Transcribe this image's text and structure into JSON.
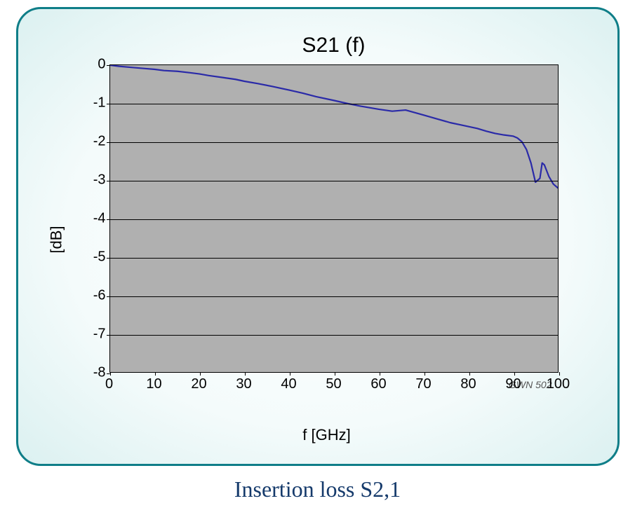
{
  "caption": "Insertion loss S2,1",
  "chart": {
    "type": "line",
    "title": "S21 (f)",
    "xlabel": "f [GHz]",
    "ylabel": "[dB]",
    "watermark": "GWN 502",
    "xlim": [
      0,
      100
    ],
    "ylim": [
      -8,
      0
    ],
    "xtick_step": 10,
    "ytick_step": 1,
    "xticks": [
      0,
      10,
      20,
      30,
      40,
      50,
      60,
      70,
      80,
      90,
      100
    ],
    "yticks": [
      0,
      -1,
      -2,
      -3,
      -4,
      -5,
      -6,
      -7,
      -8
    ],
    "grid_color": "#000000",
    "background_color": "#b0b0b0",
    "panel_border_color": "#0f7e88",
    "panel_fill_color": "#d5edee",
    "title_fontsize": 30,
    "label_fontsize": 22,
    "tick_fontsize": 20,
    "caption_fontsize": 32,
    "caption_color": "#153a6b",
    "line_color": "#2a2aa8",
    "line_width": 2.2,
    "data": {
      "x": [
        0,
        2,
        5,
        8,
        10,
        12,
        15,
        18,
        20,
        22,
        25,
        28,
        30,
        33,
        36,
        40,
        43,
        46,
        50,
        53,
        56,
        60,
        63,
        66,
        70,
        73,
        76,
        78,
        80,
        82,
        84,
        86,
        88,
        90,
        91,
        92,
        93,
        94,
        95,
        96,
        96.5,
        97,
        98,
        99,
        100
      ],
      "y": [
        0.0,
        -0.03,
        -0.06,
        -0.09,
        -0.11,
        -0.14,
        -0.16,
        -0.2,
        -0.23,
        -0.27,
        -0.32,
        -0.37,
        -0.42,
        -0.48,
        -0.55,
        -0.65,
        -0.73,
        -0.82,
        -0.92,
        -1.0,
        -1.07,
        -1.15,
        -1.2,
        -1.17,
        -1.3,
        -1.4,
        -1.5,
        -1.55,
        -1.6,
        -1.65,
        -1.72,
        -1.78,
        -1.82,
        -1.85,
        -1.9,
        -2.0,
        -2.2,
        -2.55,
        -3.05,
        -2.95,
        -2.55,
        -2.6,
        -2.9,
        -3.1,
        -3.2
      ]
    }
  }
}
